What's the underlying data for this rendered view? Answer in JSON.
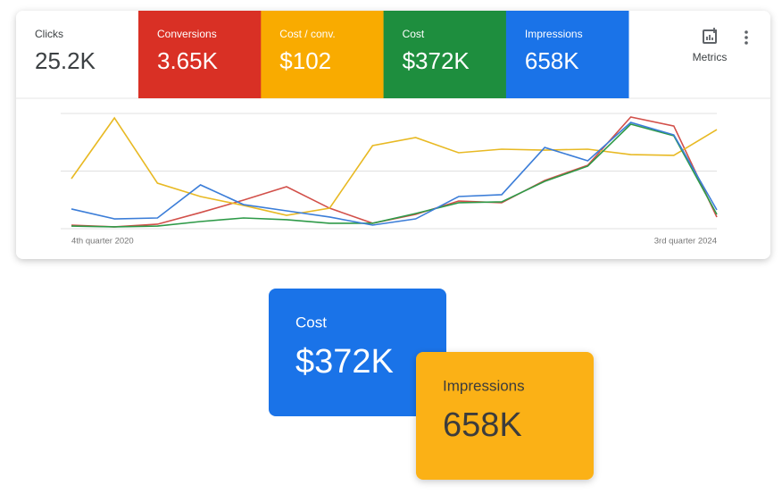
{
  "summary": {
    "label": "Clicks",
    "value": "25.2K"
  },
  "metrics_button": "Metrics",
  "chart_data": {
    "type": "line",
    "categories": [
      "4th quarter 2020",
      null,
      null,
      null,
      null,
      null,
      null,
      null,
      null,
      null,
      null,
      null,
      null,
      null,
      null,
      "3rd quarter 2024"
    ],
    "series": [
      {
        "name": "Conversions",
        "total": "3.65K",
        "color": "#d93025",
        "line_color": "#d2504a",
        "values": [
          3.1,
          1.6,
          3.9,
          14.0,
          24.8,
          36.4,
          17.8,
          4.7,
          12.4,
          24.0,
          22.5,
          41.9,
          55.0,
          96.9,
          89.1,
          10.1
        ]
      },
      {
        "name": "Cost / conv.",
        "total": "$102",
        "color": "#f9ab00",
        "line_color": "#e8b923",
        "values": [
          43.4,
          96.1,
          39.5,
          27.9,
          20.2,
          11.6,
          17.8,
          72.1,
          79.1,
          65.9,
          69.0,
          68.2,
          69.0,
          64.3,
          63.6,
          86.0
        ]
      },
      {
        "name": "Cost",
        "total": "$372K",
        "color": "#1e8e3e",
        "line_color": "#2e9a48",
        "values": [
          2.3,
          1.6,
          2.3,
          6.2,
          9.3,
          7.8,
          4.7,
          4.7,
          13.2,
          22.5,
          23.3,
          41.1,
          54.3,
          90.7,
          80.6,
          12.4
        ]
      },
      {
        "name": "Impressions",
        "total": "658K",
        "color": "#1a73e8",
        "line_color": "#3b7dd8",
        "values": [
          17.1,
          8.5,
          9.3,
          38.0,
          20.9,
          15.5,
          10.1,
          3.1,
          8.5,
          27.9,
          29.5,
          70.5,
          58.9,
          92.2,
          81.4,
          16.3
        ]
      }
    ],
    "ylim": [
      0,
      100
    ],
    "gridlines": [
      0,
      50,
      100
    ],
    "grid": true
  },
  "cards": [
    {
      "label": "Cost",
      "value": "$372K",
      "color": "#1a73e8",
      "text_color": "#ffffff"
    },
    {
      "label": "Impressions",
      "value": "658K",
      "color": "#fbb117",
      "text_color": "#3c3c3c"
    }
  ]
}
